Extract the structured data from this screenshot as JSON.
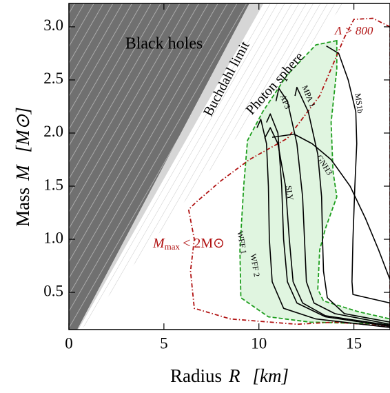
{
  "chart_data": {
    "type": "line",
    "xlabel": "Radius",
    "xlabel_symbol": "R",
    "xlabel_unit": "[km]",
    "ylabel": "Mass",
    "ylabel_symbol": "M",
    "ylabel_unit": "[M⊙]",
    "xlim": [
      0,
      16.9
    ],
    "ylim": [
      0.15,
      3.22
    ],
    "xticks": [
      0,
      5,
      10,
      15
    ],
    "yticks": [
      0.5,
      {
        "value": 1,
        "label": "1.0"
      },
      1.5,
      {
        "value": 2,
        "label": "2.0"
      },
      2.5,
      {
        "value": 3,
        "label": "3.0"
      }
    ],
    "regions": [
      {
        "label": "Black holes",
        "color": "#707070",
        "x": [
          0,
          0.44,
          9.5,
          0
        ],
        "values": [
          0.15,
          0.15,
          3.22,
          3.22
        ]
      },
      {
        "label": "Buchdahl limit",
        "color": "#d6d6d6",
        "x": [
          0.44,
          0.5,
          10.25,
          9.5
        ],
        "values": [
          0.15,
          0.15,
          3.22,
          3.22
        ]
      },
      {
        "label": "Photon sphere",
        "color": "#ffffff",
        "x": [
          0.5,
          0.66,
          14.5,
          10.25
        ],
        "values": [
          0.15,
          0.15,
          3.22,
          3.22
        ]
      }
    ],
    "bands": [
      {
        "label": "Λ > 800",
        "color": "#1e9e1e",
        "fill": "rgba(0,170,0,0.12)",
        "dash": "6 3",
        "x": [
          14.1,
          14.1,
          13.8,
          13.9,
          14.1,
          13.5,
          13.2,
          13.1,
          13.4,
          15.2,
          16.9,
          16.9,
          12.7,
          10.5,
          9.05,
          9.0,
          9.2,
          9.4,
          10.2,
          11.5,
          13.0,
          14.1
        ],
        "values": [
          2.87,
          2.6,
          2.1,
          1.64,
          1.4,
          1.1,
          0.9,
          0.53,
          0.42,
          0.32,
          0.25,
          0.2,
          0.22,
          0.27,
          0.45,
          0.9,
          1.5,
          1.93,
          2.2,
          2.55,
          2.83,
          2.87
        ]
      },
      {
        "label": "M",
        "label_sub": "max",
        "label_rest": "< 2M⊙",
        "color": "#b01010",
        "fill": "none",
        "dash": "6 3 1.5 3",
        "x": [
          16.9,
          16.0,
          15.0,
          14.5,
          13.2,
          11.5,
          9.5,
          8.0,
          6.7,
          6.3,
          6.6,
          6.4,
          6.6,
          8.5,
          12.0,
          14.0,
          16.9
        ],
        "values": [
          3.0,
          3.08,
          3.07,
          2.9,
          2.35,
          1.95,
          1.75,
          1.55,
          1.35,
          1.28,
          1.0,
          0.7,
          0.35,
          0.25,
          0.2,
          0.22,
          0.18
        ]
      }
    ],
    "series": [
      {
        "name": "MS1b",
        "color": "#000000",
        "x": [
          13.55,
          14.2,
          14.7,
          15.1,
          15.15,
          15.05,
          14.95,
          14.9,
          14.95,
          16.9
        ],
        "values": [
          2.82,
          2.75,
          2.5,
          2.2,
          1.9,
          1.5,
          1.0,
          0.6,
          0.48,
          0.4
        ]
      },
      {
        "name": "MPA 1",
        "color": "#000000",
        "x": [
          11.9,
          12.0,
          12.6,
          13.1,
          13.3,
          13.35,
          13.4,
          13.6,
          14.5,
          16.9
        ],
        "values": [
          2.35,
          2.43,
          2.2,
          1.8,
          1.4,
          1.0,
          0.7,
          0.45,
          0.3,
          0.22
        ]
      },
      {
        "name": "AP3",
        "color": "#000000",
        "x": [
          10.9,
          11.05,
          11.5,
          12.0,
          12.3,
          12.4,
          12.5,
          12.9,
          14.0,
          16.9
        ],
        "values": [
          2.3,
          2.42,
          2.3,
          1.9,
          1.4,
          1.0,
          0.6,
          0.4,
          0.3,
          0.2
        ]
      },
      {
        "name": "GNH3",
        "color": "#000000",
        "x": [
          10.7,
          11.85,
          12.8,
          13.8,
          14.8,
          15.6,
          16.3,
          16.9
        ],
        "values": [
          1.96,
          1.99,
          1.9,
          1.75,
          1.5,
          1.2,
          0.9,
          0.62
        ]
      },
      {
        "name": "SLY",
        "color": "#000000",
        "x": [
          10.3,
          10.6,
          11.0,
          11.4,
          11.6,
          11.8,
          12.3,
          13.5,
          16.9
        ],
        "values": [
          1.95,
          2.05,
          1.9,
          1.5,
          1.0,
          0.6,
          0.4,
          0.28,
          0.19
        ]
      },
      {
        "name": "WFF 1",
        "color": "#000000",
        "x": [
          9.9,
          10.1,
          10.4,
          10.5,
          10.55,
          10.7,
          11.3,
          13.0,
          16.9
        ],
        "values": [
          2.05,
          2.13,
          1.9,
          1.5,
          1.0,
          0.6,
          0.35,
          0.25,
          0.17
        ]
      },
      {
        "name": "WFF 2",
        "color": "#000000",
        "x": [
          10.4,
          10.6,
          11.0,
          11.2,
          11.3,
          11.5,
          12.0,
          13.5,
          16.9
        ],
        "values": [
          2.1,
          2.18,
          2.0,
          1.5,
          1.0,
          0.6,
          0.4,
          0.27,
          0.18
        ]
      }
    ]
  }
}
